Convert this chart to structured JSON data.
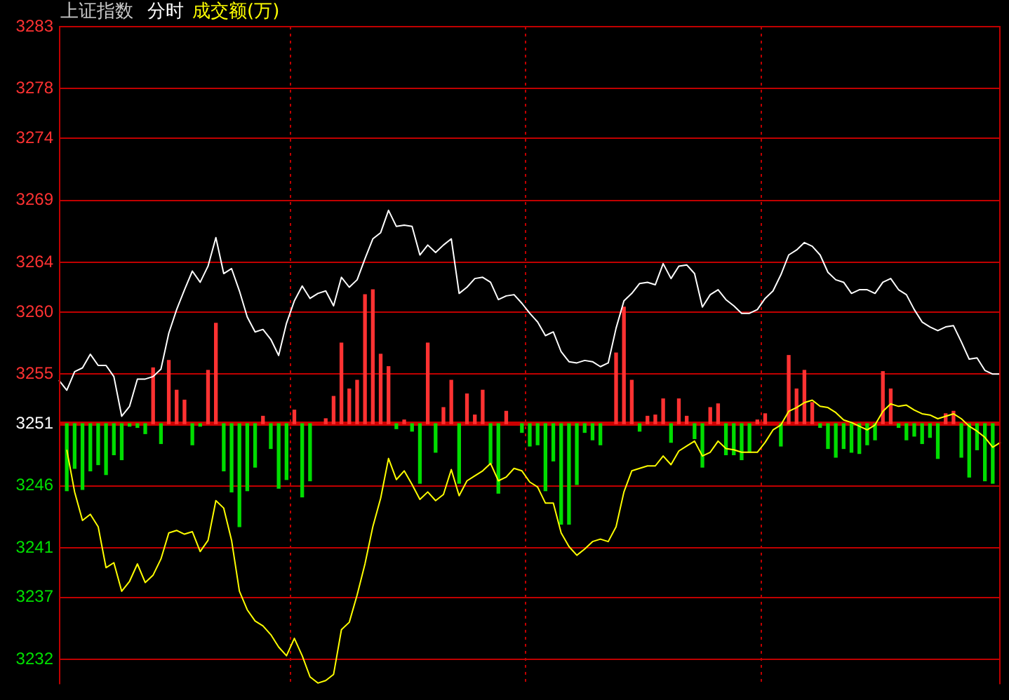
{
  "chart_data": {
    "type": "line",
    "title": "上证指数",
    "subtitle": "分时",
    "categories": [
      null,
      null,
      null,
      null,
      null,
      null,
      null,
      null,
      null,
      null,
      null,
      null,
      null,
      null,
      null,
      null,
      null,
      null,
      null,
      null,
      null,
      null,
      null,
      null,
      null,
      null,
      null,
      null,
      null,
      null,
      null,
      null,
      null,
      null,
      null,
      null,
      null,
      null,
      null,
      null,
      null,
      null,
      null,
      null,
      null,
      null,
      null,
      null,
      null,
      null,
      null,
      null,
      null,
      null,
      null,
      null,
      null,
      null,
      null,
      null,
      null,
      null,
      null,
      null,
      null,
      null,
      null,
      null,
      null,
      null,
      null,
      null,
      null,
      null,
      null,
      null,
      null,
      null,
      null,
      null,
      null,
      null,
      null,
      null,
      null,
      null,
      null,
      null,
      null,
      null,
      null,
      null,
      null,
      null,
      null,
      null,
      null,
      null,
      null,
      null,
      null,
      null,
      null,
      null,
      null,
      null,
      null,
      null,
      null,
      null,
      null,
      null,
      null,
      null,
      null,
      null,
      null,
      null,
      null,
      null,
      null
    ],
    "ylim": [
      3230,
      3283
    ],
    "yticks": [
      3283,
      3278,
      3274,
      3269,
      3264,
      3260,
      3255,
      3251,
      3246,
      3241,
      3237,
      3232
    ],
    "tick_labels": "y",
    "grid": true,
    "legend": false,
    "marker": "none",
    "line_style": "solid",
    "ref_lines": [
      {
        "axis": "y",
        "value": 3251,
        "color": "#cc0000"
      }
    ],
    "series": [
      {
        "color": "#ffffff",
        "values": [
          3254.5,
          3253.7,
          3255.2,
          3255.5,
          3256.6,
          3255.7,
          3255.7,
          3254.8,
          3251.6,
          3252.4,
          3254.6,
          3254.6,
          3254.8,
          3255.4,
          3258.3,
          3260.2,
          3261.8,
          3263.3,
          3262.4,
          3263.7,
          3266.0,
          3263.1,
          3263.5,
          3261.7,
          3259.6,
          3258.4,
          3258.6,
          3257.8,
          3256.5,
          3259.1,
          3260.9,
          3262.1,
          3261.1,
          3261.5,
          3261.7,
          3260.5,
          3262.8,
          3262.0,
          3262.6,
          3264.3,
          3265.9,
          3266.4,
          3268.2,
          3266.9,
          3267.0,
          3266.9,
          3264.6,
          3265.4,
          3264.8,
          3265.4,
          3265.9,
          3261.5,
          3262.0,
          3262.7,
          3262.8,
          3262.4,
          3261.0,
          3261.3,
          3261.4,
          3260.7,
          3259.9,
          3259.2,
          3258.1,
          3258.4,
          3256.8,
          3256.0,
          3255.9,
          3256.1,
          3256.0,
          3255.6,
          3255.9,
          3258.7,
          3260.9,
          3261.5,
          3262.3,
          3262.4,
          3262.2,
          3263.9,
          3262.7,
          3263.7,
          3263.8,
          3263.1,
          3260.4,
          3261.4,
          3261.8,
          3261.0,
          3260.5,
          3259.9,
          3259.9,
          3260.2,
          3261.1,
          3261.7,
          3263.0,
          3264.6,
          3265.0,
          3265.6,
          3265.3,
          3264.6,
          3263.2,
          3262.6,
          3262.4,
          3261.5,
          3261.8,
          3261.8,
          3261.5,
          3262.4,
          3262.7,
          3261.8,
          3261.4,
          3260.2,
          3259.2,
          3258.8,
          3258.5,
          3258.8,
          3258.9,
          3257.6,
          3256.2,
          3256.3,
          3255.3,
          3255.0,
          3255.0
        ]
      },
      {
        "name": "成交额(万)",
        "color": "#ffff00",
        "values": [
          null,
          3248.9,
          3245.5,
          3243.2,
          3243.7,
          3242.7,
          3239.4,
          3239.8,
          3237.5,
          3238.3,
          3239.7,
          3238.2,
          3238.8,
          3240.1,
          3242.2,
          3242.4,
          3242.1,
          3242.3,
          3240.7,
          3241.6,
          3244.8,
          3244.2,
          3241.6,
          3237.5,
          3236.0,
          3235.1,
          3234.7,
          3234.0,
          3233.0,
          3232.3,
          3233.7,
          3232.3,
          3230.6,
          3230.1,
          3230.3,
          3230.8,
          3234.4,
          3235.0,
          3237.2,
          3239.7,
          3242.7,
          3245.0,
          3248.2,
          3246.5,
          3247.2,
          3246.1,
          3244.9,
          3245.5,
          3244.8,
          3245.3,
          3247.3,
          3245.2,
          3246.4,
          3246.8,
          3247.2,
          3247.8,
          3246.4,
          3246.7,
          3247.4,
          3247.2,
          3246.3,
          3245.9,
          3244.6,
          3244.6,
          3242.2,
          3241.1,
          3240.4,
          3240.9,
          3241.5,
          3241.7,
          3241.5,
          3242.7,
          3245.5,
          3247.2,
          3247.4,
          3247.6,
          3247.6,
          3248.4,
          3247.7,
          3248.8,
          3249.2,
          3249.6,
          3248.4,
          3248.7,
          3249.6,
          3249.0,
          3248.9,
          3248.7,
          3248.7,
          3248.7,
          3249.5,
          3250.5,
          3250.9,
          3252.0,
          3252.3,
          3252.7,
          3252.9,
          3252.4,
          3252.3,
          3251.9,
          3251.3,
          3251.1,
          3250.8,
          3250.5,
          3250.9,
          3252.0,
          3252.6,
          3252.4,
          3252.5,
          3252.1,
          3251.8,
          3251.7,
          3251.4,
          3251.6,
          3251.8,
          3251.4,
          3250.8,
          3250.4,
          3249.9,
          3249.1,
          3249.5
        ]
      },
      {
        "type": "bar",
        "base": [
          null,
          3251,
          3251,
          3251,
          3251,
          3251,
          3251,
          3251,
          3251,
          3251,
          3251,
          3251,
          3251,
          3251,
          3251,
          3251,
          3251,
          3251,
          3251,
          3251,
          3251,
          3251,
          3251,
          3251,
          3251,
          3251,
          3251,
          3251,
          3251,
          3251,
          3251,
          3251,
          3251,
          null,
          3251,
          3251,
          3251,
          3251,
          3251,
          3251,
          3251,
          3251,
          3251,
          3251,
          3251,
          3251,
          3251,
          3251,
          3251,
          3251,
          3251,
          3251,
          3251,
          3251,
          3251,
          3251,
          3251,
          3251,
          null,
          3251,
          3251,
          3251,
          3251,
          3251,
          3251,
          3251,
          3251,
          3251,
          3251,
          3251,
          null,
          3251,
          3251,
          3251,
          3251,
          3251,
          3251,
          3251,
          3251,
          3251,
          3251,
          3251,
          3251,
          3251,
          3251,
          3251,
          3251,
          3251,
          3251,
          3251,
          3251,
          null,
          3251,
          3251,
          3251,
          3251,
          3251,
          3251,
          3251,
          3251,
          3251,
          3251,
          3251,
          3251,
          3251,
          3251,
          3251,
          3251,
          3251,
          3251,
          3251,
          3251,
          3251,
          3251,
          3251,
          3251,
          3251,
          3251,
          3251,
          3251,
          null
        ],
        "values": [
          null,
          -5.4,
          -3.6,
          -5.3,
          -3.8,
          -3.3,
          -4.1,
          -2.5,
          -2.9,
          -0.2,
          -0.3,
          -0.8,
          4.5,
          -1.6,
          5.1,
          2.7,
          1.9,
          -1.7,
          -0.2,
          4.3,
          8.1,
          -3.8,
          -5.5,
          -8.3,
          -5.4,
          -3.5,
          0.6,
          -2.0,
          -5.2,
          -4.5,
          1.1,
          -5.9,
          -4.6,
          null,
          0.4,
          2.2,
          6.5,
          2.8,
          3.5,
          10.4,
          10.8,
          5.6,
          4.6,
          -0.4,
          0.3,
          -0.6,
          -4.8,
          6.5,
          -2.3,
          1.3,
          3.5,
          -4.8,
          2.4,
          0.7,
          2.7,
          -3.2,
          -5.6,
          1.0,
          null,
          -0.7,
          -1.8,
          -1.7,
          -5.4,
          -3.0,
          -8.1,
          -8.1,
          -4.9,
          -0.7,
          -1.3,
          -1.7,
          null,
          5.7,
          9.4,
          3.5,
          -0.6,
          0.6,
          0.7,
          2.0,
          -1.5,
          2.0,
          0.6,
          -1.2,
          -3.5,
          1.3,
          1.6,
          -2.5,
          -2.5,
          -2.9,
          -2.3,
          0.3,
          0.8,
          null,
          -1.8,
          5.5,
          2.8,
          4.3,
          1.7,
          -0.3,
          -2.0,
          -2.7,
          -2.0,
          -2.3,
          -2.4,
          -1.7,
          -1.3,
          4.2,
          2.8,
          -0.3,
          -1.3,
          -1.0,
          -1.6,
          -1.1,
          -2.8,
          0.8,
          1.0,
          -2.7,
          -4.3,
          -2.1,
          -4.6,
          -4.8,
          null
        ],
        "colors": [
          "#ff3232",
          "#00dd00",
          "#00dd00",
          "#00dd00",
          "#00dd00",
          "#00dd00",
          "#00dd00",
          "#00dd00",
          "#00dd00",
          "#00dd00",
          "#00dd00",
          "#00dd00",
          "#ff3232",
          "#00dd00",
          "#ff3232",
          "#ff3232",
          "#ff3232",
          "#00dd00",
          "#00dd00",
          "#ff3232",
          "#ff3232",
          "#00dd00",
          "#00dd00",
          "#00dd00",
          "#00dd00",
          "#00dd00",
          "#ff3232",
          "#00dd00",
          "#00dd00",
          "#00dd00",
          "#ff3232",
          "#00dd00",
          "#00dd00",
          "#ff3232",
          "#ff3232",
          "#ff3232",
          "#ff3232",
          "#ff3232",
          "#ff3232",
          "#ff3232",
          "#ff3232",
          "#ff3232",
          "#ff3232",
          "#00dd00",
          "#ff3232",
          "#00dd00",
          "#00dd00",
          "#ff3232",
          "#00dd00",
          "#ff3232",
          "#ff3232",
          "#00dd00",
          "#ff3232",
          "#ff3232",
          "#ff3232",
          "#00dd00",
          "#00dd00",
          "#ff3232",
          "#ff3232",
          "#00dd00",
          "#00dd00",
          "#00dd00",
          "#00dd00",
          "#00dd00",
          "#00dd00",
          "#00dd00",
          "#00dd00",
          "#00dd00",
          "#00dd00",
          "#00dd00",
          "#ff3232",
          "#ff3232",
          "#ff3232",
          "#ff3232",
          "#00dd00",
          "#ff3232",
          "#ff3232",
          "#ff3232",
          "#00dd00",
          "#ff3232",
          "#ff3232",
          "#00dd00",
          "#00dd00",
          "#ff3232",
          "#ff3232",
          "#00dd00",
          "#00dd00",
          "#00dd00",
          "#00dd00",
          "#ff3232",
          "#ff3232",
          "#ff3232",
          "#00dd00",
          "#ff3232",
          "#ff3232",
          "#ff3232",
          "#ff3232",
          "#00dd00",
          "#00dd00",
          "#00dd00",
          "#00dd00",
          "#00dd00",
          "#00dd00",
          "#00dd00",
          "#00dd00",
          "#ff3232",
          "#ff3232",
          "#00dd00",
          "#00dd00",
          "#00dd00",
          "#00dd00",
          "#00dd00",
          "#00dd00",
          "#ff3232",
          "#ff3232",
          "#00dd00",
          "#00dd00",
          "#00dd00",
          "#00dd00",
          "#00dd00",
          "#ff3232"
        ]
      }
    ]
  }
}
